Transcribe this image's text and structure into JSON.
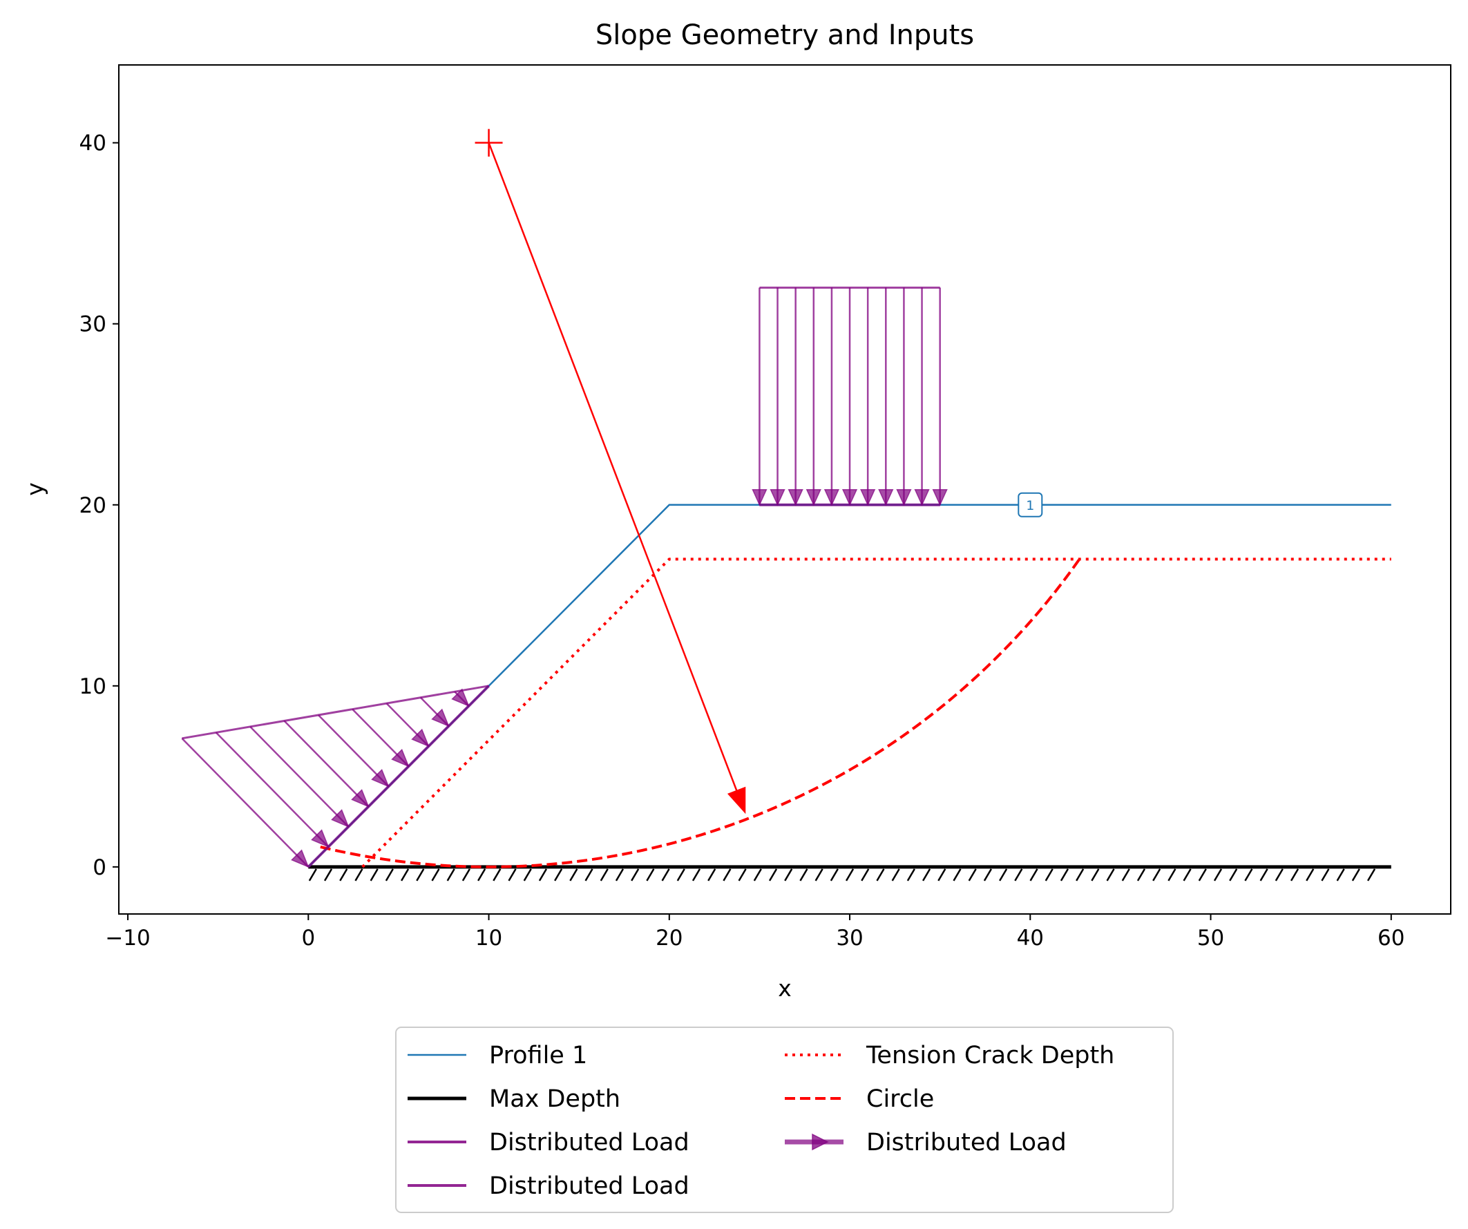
{
  "chart_data": {
    "type": "line",
    "title": "Slope Geometry and Inputs",
    "xlabel": "x",
    "ylabel": "y",
    "xlim": [
      -10.5,
      63.3
    ],
    "ylim": [
      -2.6,
      44.3
    ],
    "xticks": [
      -10,
      0,
      10,
      20,
      30,
      40,
      50,
      60
    ],
    "yticks": [
      0,
      10,
      20,
      30,
      40
    ],
    "xtick_labels": [
      "−10",
      "0",
      "10",
      "20",
      "30",
      "40",
      "50",
      "60"
    ],
    "ytick_labels": [
      "0",
      "10",
      "20",
      "30",
      "40"
    ],
    "colors": {
      "profile": "#1f77b4",
      "max_depth": "#000000",
      "load": "#800080",
      "circle": "#ff0000"
    },
    "profile": {
      "name": "Profile 1",
      "label": "1",
      "label_at": [
        40,
        20
      ],
      "x": [
        0,
        10,
        20,
        60
      ],
      "y": [
        0,
        10,
        20,
        20
      ]
    },
    "max_depth": {
      "name": "Max Depth",
      "x": [
        0,
        60
      ],
      "y": [
        0,
        0
      ]
    },
    "tension_crack": {
      "name": "Tension Crack Depth",
      "x": [
        3,
        13,
        20,
        60
      ],
      "y": [
        0,
        10,
        17,
        17
      ]
    },
    "circle": {
      "name": "Circle",
      "center": [
        10,
        40
      ],
      "radius": 40,
      "x_range": [
        0.67,
        42.7
      ]
    },
    "center_marker": [
      10,
      40
    ],
    "radius_arrow": {
      "from": [
        10,
        40
      ],
      "to": [
        24.2,
        3
      ]
    },
    "distributed_loads": [
      {
        "name": "Distributed Load",
        "surface_x": [
          0,
          10
        ],
        "surface_y": [
          0,
          10
        ],
        "top_x": [
          -7,
          10
        ],
        "top_y": [
          7.1,
          10
        ],
        "arrows": 10,
        "direction": "normal to slope"
      },
      {
        "name": "Distributed Load",
        "surface_x": [
          25,
          35
        ],
        "surface_y": [
          20,
          20
        ],
        "top_y": 32,
        "arrows": 11,
        "direction": "down"
      }
    ],
    "legend": {
      "placement": "bottom-center",
      "columns": 2,
      "entries": [
        {
          "label": "Profile 1",
          "style": "solid",
          "color": "#1f77b4"
        },
        {
          "label": "Max Depth",
          "style": "solid",
          "color": "#000000"
        },
        {
          "label": "Distributed Load",
          "style": "solid",
          "color": "#800080"
        },
        {
          "label": "Distributed Load",
          "style": "solid",
          "color": "#800080"
        },
        {
          "label": "Tension Crack Depth",
          "style": "dotted",
          "color": "#ff0000"
        },
        {
          "label": "Circle",
          "style": "dashed",
          "color": "#ff0000"
        },
        {
          "label": "Distributed Load",
          "style": "arrow",
          "color": "#800080"
        }
      ]
    },
    "grid": false
  }
}
